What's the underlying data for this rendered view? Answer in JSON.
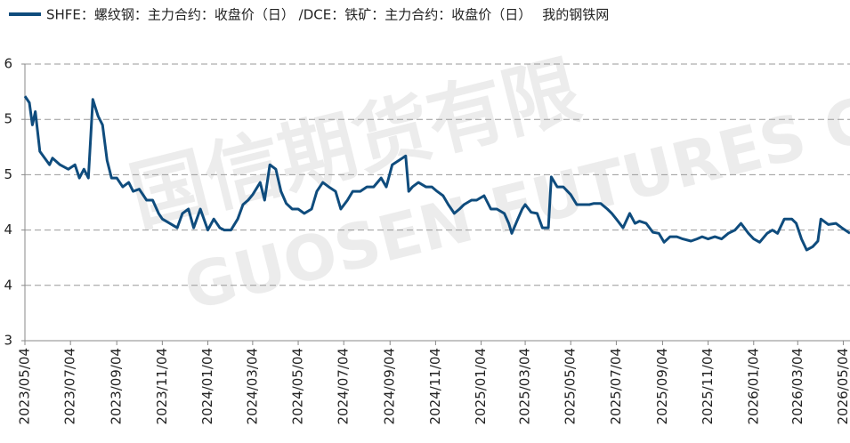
{
  "chart_data": {
    "type": "line",
    "watermarks": [
      "国信期货有限",
      "GUOSEN FUTURES C"
    ],
    "source": "我的钢铁网",
    "x": [
      "2023/05/04",
      "2023/05/10",
      "2023/05/14",
      "2023/05/18",
      "2023/05/24",
      "2023/06/06",
      "2023/06/10",
      "2023/06/20",
      "2023/07/01",
      "2023/07/10",
      "2023/07/16",
      "2023/07/22",
      "2023/07/28",
      "2023/08/03",
      "2023/08/10",
      "2023/08/16",
      "2023/08/22",
      "2023/08/28",
      "2023/09/04",
      "2023/09/12",
      "2023/09/20",
      "2023/09/26",
      "2023/10/04",
      "2023/10/14",
      "2023/10/22",
      "2023/10/30",
      "2023/11/04",
      "2023/11/14",
      "2023/11/24",
      "2023/12/01",
      "2023/12/09",
      "2023/12/16",
      "2023/12/25",
      "2024/01/04",
      "2024/01/12",
      "2024/01/20",
      "2024/01/26",
      "2024/02/04",
      "2024/02/13",
      "2024/02/20",
      "2024/02/27",
      "2024/03/04",
      "2024/03/14",
      "2024/03/20",
      "2024/03/27",
      "2024/04/04",
      "2024/04/11",
      "2024/04/18",
      "2024/04/26",
      "2024/05/04",
      "2024/05/12",
      "2024/05/22",
      "2024/05/29",
      "2024/06/06",
      "2024/06/14",
      "2024/06/23",
      "2024/06/30",
      "2024/07/09",
      "2024/07/16",
      "2024/07/26",
      "2024/08/04",
      "2024/08/13",
      "2024/08/23",
      "2024/08/30",
      "2024/09/07",
      "2024/09/16",
      "2024/09/25",
      "2024/09/29",
      "2024/10/04",
      "2024/10/12",
      "2024/10/22",
      "2024/10/30",
      "2024/11/06",
      "2024/11/14",
      "2024/11/21",
      "2024/11/29",
      "2024/12/06",
      "2024/12/12",
      "2024/12/22",
      "2024/12/29",
      "2025/01/08",
      "2025/01/17",
      "2025/01/25",
      "2025/02/04",
      "2025/02/10",
      "2025/02/14",
      "2025/02/21",
      "2025/02/28",
      "2025/03/04",
      "2025/03/12",
      "2025/03/20",
      "2025/03/27",
      "2025/04/04",
      "2025/04/08",
      "2025/04/16",
      "2025/04/24",
      "2025/05/04",
      "2025/05/12",
      "2025/05/22",
      "2025/05/29",
      "2025/06/04",
      "2025/06/13",
      "2025/06/22",
      "2025/06/28",
      "2025/07/04",
      "2025/07/13",
      "2025/07/22",
      "2025/07/29",
      "2025/08/04",
      "2025/08/13",
      "2025/08/22",
      "2025/08/30",
      "2025/09/06",
      "2025/09/14",
      "2025/09/23",
      "2025/10/01",
      "2025/10/12",
      "2025/10/20",
      "2025/10/27",
      "2025/11/04",
      "2025/11/13",
      "2025/11/22",
      "2025/12/01",
      "2025/12/10",
      "2025/12/18",
      "2025/12/28",
      "2026/01/04",
      "2026/01/12",
      "2026/01/22",
      "2026/01/29",
      "2026/02/05",
      "2026/02/14",
      "2026/02/24",
      "2026/03/02",
      "2026/03/09",
      "2026/03/16",
      "2026/03/24",
      "2026/03/31",
      "2026/04/04",
      "2026/04/14",
      "2026/04/24",
      "2026/05/02",
      "2026/05/13"
    ],
    "series": [
      {
        "name": "SHFE：螺纹钢：主力合约：收盘价（日） /DCE：铁矿：主力合约：收盘价（日）",
        "color": "#0f4c7d",
        "values": [
          5.71,
          5.65,
          5.45,
          5.57,
          5.21,
          5.09,
          5.15,
          5.09,
          5.05,
          5.09,
          4.97,
          5.05,
          4.97,
          5.68,
          5.53,
          5.45,
          5.13,
          4.97,
          4.97,
          4.89,
          4.93,
          4.85,
          4.87,
          4.77,
          4.77,
          4.65,
          4.6,
          4.56,
          4.52,
          4.65,
          4.69,
          4.52,
          4.69,
          4.5,
          4.6,
          4.52,
          4.5,
          4.5,
          4.6,
          4.73,
          4.77,
          4.82,
          4.93,
          4.77,
          5.09,
          5.05,
          4.85,
          4.74,
          4.69,
          4.69,
          4.65,
          4.69,
          4.85,
          4.93,
          4.89,
          4.85,
          4.69,
          4.77,
          4.85,
          4.85,
          4.89,
          4.89,
          4.97,
          4.89,
          5.09,
          5.13,
          5.17,
          4.85,
          4.89,
          4.93,
          4.89,
          4.89,
          4.85,
          4.81,
          4.73,
          4.65,
          4.69,
          4.73,
          4.77,
          4.77,
          4.81,
          4.69,
          4.69,
          4.65,
          4.56,
          4.47,
          4.58,
          4.69,
          4.73,
          4.66,
          4.65,
          4.52,
          4.52,
          4.98,
          4.89,
          4.89,
          4.82,
          4.73,
          4.73,
          4.73,
          4.74,
          4.74,
          4.69,
          4.65,
          4.6,
          4.52,
          4.65,
          4.56,
          4.58,
          4.56,
          4.48,
          4.47,
          4.39,
          4.44,
          4.44,
          4.42,
          4.4,
          4.42,
          4.44,
          4.42,
          4.44,
          4.42,
          4.47,
          4.5,
          4.56,
          4.47,
          4.42,
          4.39,
          4.47,
          4.5,
          4.47,
          4.6,
          4.6,
          4.56,
          4.42,
          4.32,
          4.35,
          4.4,
          4.6,
          4.55,
          4.56,
          4.52,
          4.47
        ]
      }
    ],
    "xlim": [
      "2023/05/04",
      "2026/05/13"
    ],
    "xticks": [
      "2023/05/04",
      "2023/07/04",
      "2023/09/04",
      "2023/11/04",
      "2024/01/04",
      "2024/03/04",
      "2024/05/04",
      "2024/07/04",
      "2024/09/04",
      "2024/11/04",
      "2025/01/04",
      "2025/03/04",
      "2025/05/04",
      "2025/07/04",
      "2025/09/04",
      "2025/11/04",
      "2026/01/04",
      "2026/03/04",
      "2026/05/04"
    ],
    "ylim": [
      3.5,
      6
    ],
    "yticks": [
      {
        "value": 6,
        "label": "6"
      },
      {
        "value": 5.5,
        "label": "5"
      },
      {
        "value": 5,
        "label": "5"
      },
      {
        "value": 4.5,
        "label": "4"
      },
      {
        "value": 4,
        "label": "4"
      },
      {
        "value": 3.5,
        "label": "3"
      }
    ],
    "grid": true
  }
}
